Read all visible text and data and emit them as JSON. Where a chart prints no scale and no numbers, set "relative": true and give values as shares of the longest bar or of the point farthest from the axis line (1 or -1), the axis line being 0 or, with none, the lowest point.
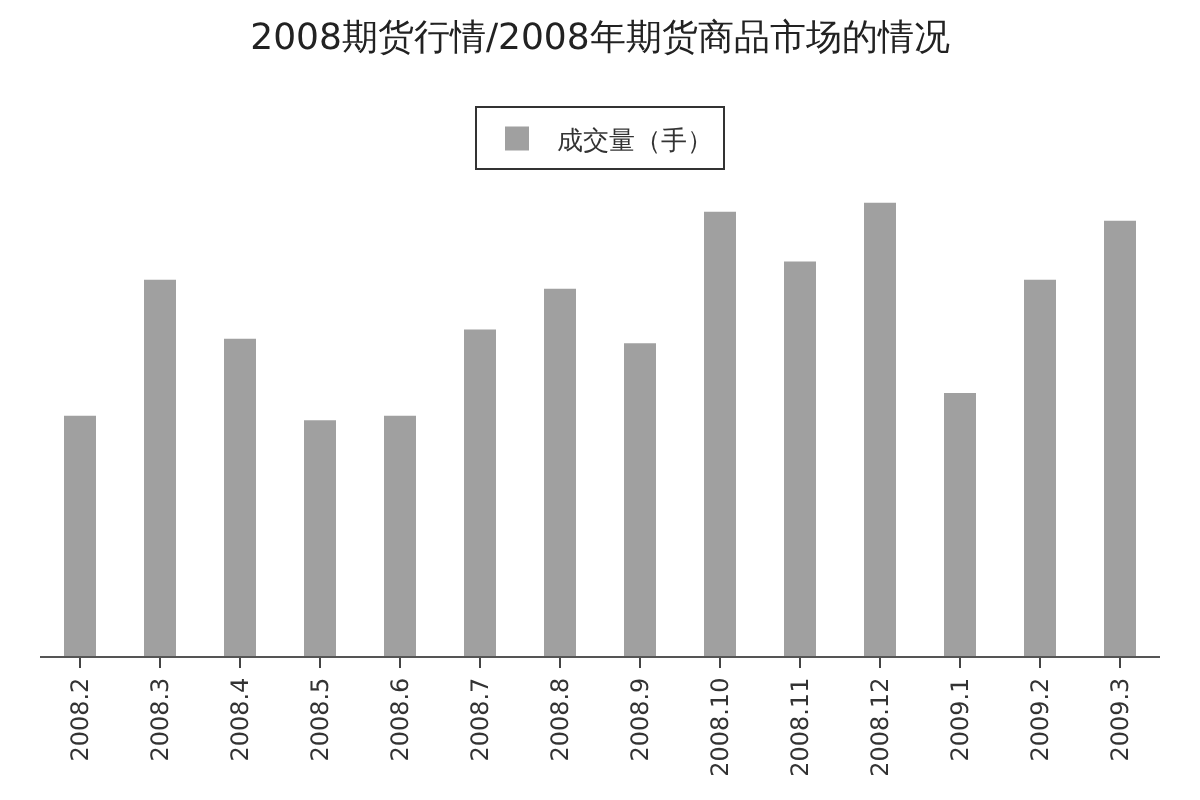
{
  "chart_data": {
    "type": "bar",
    "title": "2008期货行情/2008年期货商品市场的情况",
    "relative": true,
    "categories": [
      "2008.2",
      "2008.3",
      "2008.4",
      "2008.5",
      "2008.6",
      "2008.7",
      "2008.8",
      "2008.9",
      "2008.10",
      "2008.11",
      "2008.12",
      "2009.1",
      "2009.2",
      "2009.3"
    ],
    "series": [
      {
        "name": "成交量（手）",
        "color": "#a0a0a0",
        "values": [
          0.53,
          0.83,
          0.7,
          0.52,
          0.53,
          0.72,
          0.81,
          0.69,
          0.98,
          0.87,
          1,
          0.58,
          0.83,
          0.96
        ]
      }
    ],
    "legend": "top"
  }
}
